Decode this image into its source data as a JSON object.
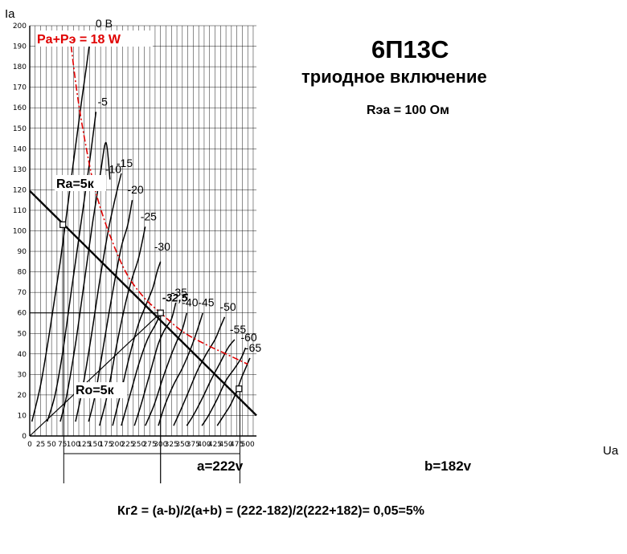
{
  "chart_data": {
    "type": "line",
    "title": "6П13С",
    "subtitle": "триодное включение",
    "note": "Rэа = 100 Ом",
    "xlabel": "Ua",
    "ylabel": "Ia",
    "xlim": [
      0,
      520
    ],
    "ylim": [
      0,
      200
    ],
    "x_ticks": [
      0,
      25,
      50,
      75,
      100,
      125,
      150,
      175,
      200,
      225,
      250,
      275,
      300,
      325,
      350,
      375,
      400,
      425,
      450,
      475,
      500
    ],
    "y_ticks": [
      0,
      10,
      20,
      30,
      40,
      50,
      60,
      70,
      80,
      90,
      100,
      110,
      120,
      130,
      140,
      150,
      160,
      170,
      180,
      190,
      200
    ],
    "grid": true,
    "series": [
      {
        "name": "0 В",
        "points": [
          [
            5,
            7
          ],
          [
            25,
            25
          ],
          [
            45,
            50
          ],
          [
            70,
            85
          ],
          [
            95,
            125
          ],
          [
            120,
            165
          ],
          [
            130,
            180
          ],
          [
            140,
            196
          ]
        ]
      },
      {
        "name": "-5",
        "points": [
          [
            40,
            7
          ],
          [
            58,
            20
          ],
          [
            75,
            40
          ],
          [
            95,
            70
          ],
          [
            115,
            100
          ],
          [
            135,
            130
          ],
          [
            152,
            158
          ]
        ]
      },
      {
        "name": "-10",
        "points": [
          [
            70,
            7
          ],
          [
            85,
            20
          ],
          [
            105,
            45
          ],
          [
            125,
            75
          ],
          [
            145,
            105
          ],
          [
            162,
            128
          ],
          [
            175,
            143
          ],
          [
            184,
            125
          ]
        ]
      },
      {
        "name": "-15",
        "points": [
          [
            105,
            7
          ],
          [
            120,
            22
          ],
          [
            140,
            47
          ],
          [
            160,
            75
          ],
          [
            180,
            100
          ],
          [
            195,
            115
          ],
          [
            210,
            128
          ]
        ]
      },
      {
        "name": "-20",
        "points": [
          [
            135,
            7
          ],
          [
            150,
            20
          ],
          [
            170,
            45
          ],
          [
            190,
            70
          ],
          [
            210,
            92
          ],
          [
            225,
            103
          ],
          [
            235,
            115
          ]
        ]
      },
      {
        "name": "-25",
        "points": [
          [
            160,
            5
          ],
          [
            178,
            20
          ],
          [
            200,
            45
          ],
          [
            220,
            65
          ],
          [
            235,
            77
          ],
          [
            250,
            87
          ],
          [
            265,
            102
          ]
        ]
      },
      {
        "name": "-30",
        "points": [
          [
            190,
            5
          ],
          [
            210,
            22
          ],
          [
            230,
            40
          ],
          [
            250,
            55
          ],
          [
            265,
            63
          ],
          [
            282,
            72
          ],
          [
            292,
            80
          ],
          [
            300,
            85
          ]
        ]
      },
      {
        "name": "-32,5",
        "points": [
          [
            210,
            5
          ],
          [
            230,
            20
          ],
          [
            250,
            35
          ],
          [
            270,
            47
          ],
          [
            290,
            55
          ],
          [
            300,
            60
          ]
        ]
      },
      {
        "name": "-35",
        "points": [
          [
            240,
            5
          ],
          [
            255,
            15
          ],
          [
            275,
            30
          ],
          [
            295,
            45
          ],
          [
            310,
            52
          ],
          [
            325,
            57
          ],
          [
            335,
            65
          ]
        ]
      },
      {
        "name": "-40",
        "points": [
          [
            265,
            5
          ],
          [
            285,
            15
          ],
          [
            305,
            28
          ],
          [
            320,
            37
          ],
          [
            335,
            45
          ],
          [
            350,
            52
          ],
          [
            360,
            60
          ]
        ]
      },
      {
        "name": "-45",
        "points": [
          [
            295,
            5
          ],
          [
            310,
            15
          ],
          [
            330,
            25
          ],
          [
            350,
            33
          ],
          [
            370,
            43
          ],
          [
            385,
            52
          ],
          [
            397,
            60
          ]
        ]
      },
      {
        "name": "-50",
        "points": [
          [
            330,
            5
          ],
          [
            345,
            12
          ],
          [
            365,
            22
          ],
          [
            385,
            32
          ],
          [
            405,
            40
          ],
          [
            425,
            47
          ],
          [
            435,
            52
          ],
          [
            447,
            58
          ]
        ]
      },
      {
        "name": "-55",
        "points": [
          [
            360,
            5
          ],
          [
            375,
            10
          ],
          [
            395,
            18
          ],
          [
            415,
            27
          ],
          [
            435,
            35
          ],
          [
            455,
            43
          ],
          [
            470,
            47
          ]
        ]
      },
      {
        "name": "-60",
        "points": [
          [
            395,
            5
          ],
          [
            410,
            10
          ],
          [
            430,
            18
          ],
          [
            450,
            27
          ],
          [
            470,
            33
          ],
          [
            485,
            38
          ],
          [
            495,
            43
          ]
        ]
      },
      {
        "name": "-65",
        "points": [
          [
            430,
            5
          ],
          [
            445,
            10
          ],
          [
            460,
            15
          ],
          [
            475,
            22
          ],
          [
            485,
            28
          ],
          [
            495,
            33
          ],
          [
            505,
            38
          ]
        ]
      },
      {
        "name": "Pa+Pэ = 18 W",
        "points": [
          [
            95,
            190
          ],
          [
            110,
            165
          ],
          [
            130,
            140
          ],
          [
            150,
            120
          ],
          [
            180,
            100
          ],
          [
            220,
            80
          ],
          [
            260,
            68
          ],
          [
            300,
            60
          ],
          [
            350,
            51
          ],
          [
            400,
            45
          ],
          [
            450,
            40
          ],
          [
            500,
            35
          ]
        ]
      },
      {
        "name": "Ra=5к",
        "points": [
          [
            0,
            119.5
          ],
          [
            520,
            10
          ]
        ]
      },
      {
        "name": "Ro=5к",
        "points": [
          [
            0,
            0
          ],
          [
            300,
            60
          ]
        ]
      }
    ],
    "labels": {
      "power": "Pa+Pэ = 18 W",
      "ra": "Ra=5к",
      "ro": "Ro=5к",
      "curve_minus_325": "-32,5",
      "a": "a=222v",
      "b": "b=182v",
      "formula": "Кг2 = (a-b)/2(a+b) = (222-182)/2(222+182)= 0,05=5%"
    },
    "markers": [
      [
        76,
        103
      ],
      [
        300,
        60
      ],
      [
        480,
        23
      ]
    ],
    "operating_point": {
      "ua": 300,
      "ia": 60
    },
    "dimensions": {
      "a_from": 78,
      "a_to": 300,
      "b_from": 300,
      "b_to": 482
    }
  },
  "colors": {
    "grid": "#000000",
    "curves": "#000000",
    "power": "#e00000",
    "background": "#ffffff"
  }
}
